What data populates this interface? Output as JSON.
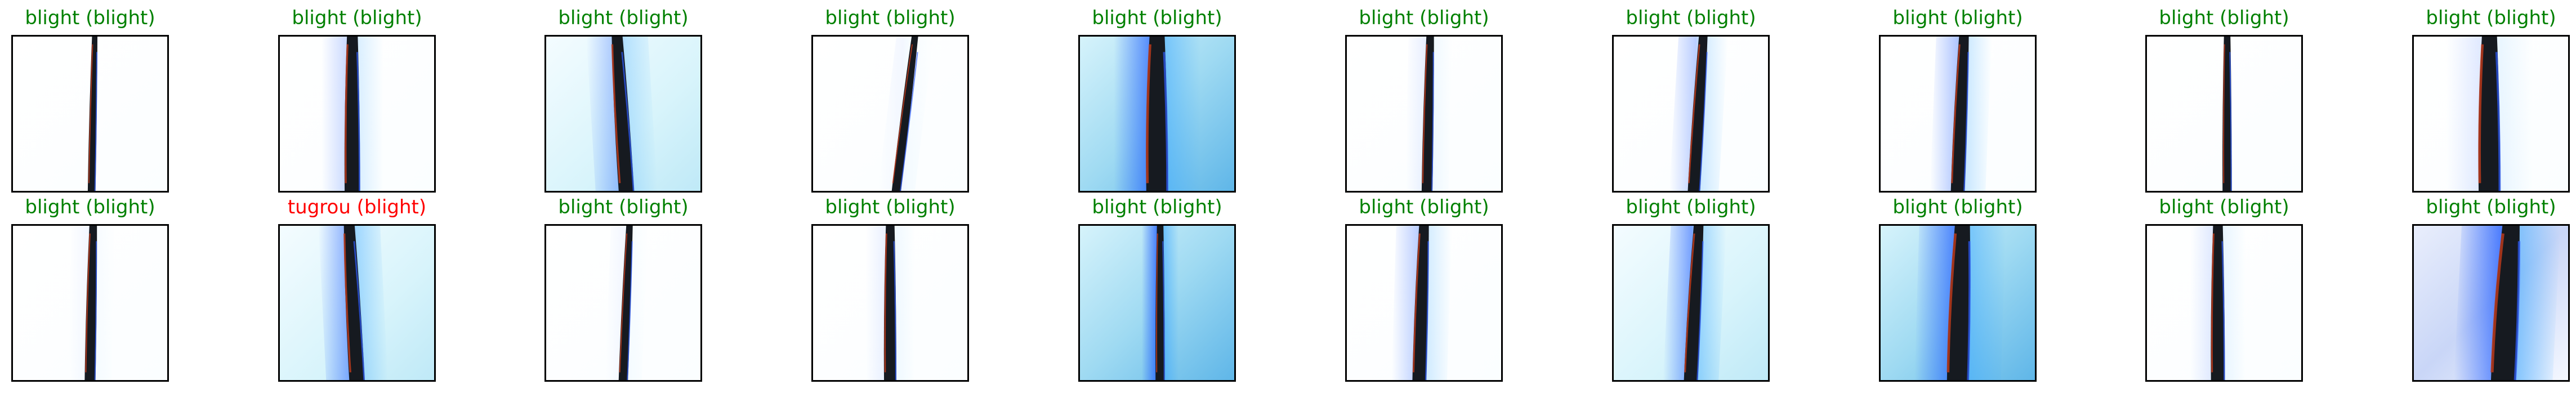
{
  "colors": {
    "correct": "#008000",
    "incorrect": "#ff0000"
  },
  "rows": [
    [
      {
        "caption": "blight (blight)",
        "correct": true,
        "bg": "white",
        "cx": 0.51,
        "w": 0.05,
        "lean": 0.02,
        "glow": 0.0
      },
      {
        "caption": "blight (blight)",
        "correct": true,
        "bg": "white",
        "cx": 0.47,
        "w": 0.1,
        "lean": 0.0,
        "glow": 0.25
      },
      {
        "caption": "blight (blight)",
        "correct": true,
        "bg": "pale",
        "cx": 0.52,
        "w": 0.1,
        "lean": -0.06,
        "glow": 0.35
      },
      {
        "caption": "blight (blight)",
        "correct": true,
        "bg": "white",
        "cx": 0.54,
        "w": 0.06,
        "lean": 0.12,
        "glow": 0.05
      },
      {
        "caption": "blight (blight)",
        "correct": true,
        "bg": "blue",
        "cx": 0.5,
        "w": 0.14,
        "lean": 0.0,
        "glow": 0.7
      },
      {
        "caption": "blight (blight)",
        "correct": true,
        "bg": "white",
        "cx": 0.52,
        "w": 0.07,
        "lean": 0.02,
        "glow": 0.1
      },
      {
        "caption": "blight (blight)",
        "correct": true,
        "bg": "white",
        "cx": 0.52,
        "w": 0.08,
        "lean": 0.06,
        "glow": 0.3
      },
      {
        "caption": "blight (blight)",
        "correct": true,
        "bg": "white",
        "cx": 0.5,
        "w": 0.09,
        "lean": 0.04,
        "glow": 0.35
      },
      {
        "caption": "blight (blight)",
        "correct": true,
        "bg": "white",
        "cx": 0.52,
        "w": 0.06,
        "lean": 0.0,
        "glow": 0.0
      },
      {
        "caption": "blight (blight)",
        "correct": true,
        "bg": "white",
        "cx": 0.49,
        "w": 0.14,
        "lean": 0.0,
        "glow": 0.15
      }
    ],
    [
      {
        "caption": "blight (blight)",
        "correct": true,
        "bg": "white",
        "cx": 0.5,
        "w": 0.07,
        "lean": 0.02,
        "glow": 0.05
      },
      {
        "caption": "tugrou (blight)",
        "correct": false,
        "bg": "pale",
        "cx": 0.5,
        "w": 0.1,
        "lean": -0.05,
        "glow": 0.5
      },
      {
        "caption": "blight (blight)",
        "correct": true,
        "bg": "white",
        "cx": 0.5,
        "w": 0.06,
        "lean": 0.04,
        "glow": 0.05
      },
      {
        "caption": "blight (blight)",
        "correct": true,
        "bg": "white",
        "cx": 0.5,
        "w": 0.08,
        "lean": 0.0,
        "glow": 0.1
      },
      {
        "caption": "blight (blight)",
        "correct": true,
        "bg": "blue",
        "cx": 0.52,
        "w": 0.06,
        "lean": 0.0,
        "glow": 0.8
      },
      {
        "caption": "blight (blight)",
        "correct": true,
        "bg": "white",
        "cx": 0.47,
        "w": 0.09,
        "lean": 0.03,
        "glow": 0.3
      },
      {
        "caption": "blight (blight)",
        "correct": true,
        "bg": "pale",
        "cx": 0.5,
        "w": 0.09,
        "lean": 0.05,
        "glow": 0.55
      },
      {
        "caption": "blight (blight)",
        "correct": true,
        "bg": "blue",
        "cx": 0.5,
        "w": 0.14,
        "lean": 0.03,
        "glow": 0.7
      },
      {
        "caption": "blight (blight)",
        "correct": true,
        "bg": "white",
        "cx": 0.46,
        "w": 0.09,
        "lean": 0.0,
        "glow": 0.15
      },
      {
        "caption": "blight (blight)",
        "correct": true,
        "bg": "bluewhite",
        "cx": 0.58,
        "w": 0.16,
        "lean": 0.05,
        "glow": 0.75
      }
    ]
  ]
}
